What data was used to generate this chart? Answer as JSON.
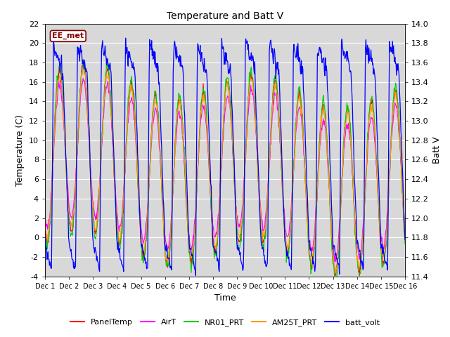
{
  "title": "Temperature and Batt V",
  "xlabel": "Time",
  "ylabel_left": "Temperature (C)",
  "ylabel_right": "Batt V",
  "watermark": "EE_met",
  "xlim_days": [
    0,
    15
  ],
  "ylim_left": [
    -4,
    22
  ],
  "ylim_right": [
    11.4,
    14.0
  ],
  "x_ticks_labels": [
    "Dec 1",
    "Dec 2",
    "Dec 3",
    "Dec 4",
    "Dec 5",
    "Dec 6",
    "Dec 7",
    "Dec 8",
    "Dec 9",
    "Dec 10",
    "Dec 11",
    "Dec 12",
    "Dec 13",
    "Dec 14",
    "Dec 15",
    "Dec 16"
  ],
  "y_ticks_left": [
    -4,
    -2,
    0,
    2,
    4,
    6,
    8,
    10,
    12,
    14,
    16,
    18,
    20,
    22
  ],
  "y_ticks_right": [
    11.4,
    11.6,
    11.8,
    12.0,
    12.2,
    12.4,
    12.6,
    12.8,
    13.0,
    13.2,
    13.4,
    13.6,
    13.8,
    14.0
  ],
  "series_colors": {
    "PanelTemp": "#ff0000",
    "AirT": "#ff00ff",
    "NR01_PRT": "#00cc00",
    "AM25T_PRT": "#ff9900",
    "batt_volt": "#0000ff"
  },
  "background_color": "#ffffff",
  "plot_bg_color": "#d8d8d8",
  "grid_color": "#ffffff",
  "watermark_bg": "#ffffff",
  "watermark_border": "#800000",
  "figsize": [
    6.4,
    4.8
  ],
  "dpi": 100
}
